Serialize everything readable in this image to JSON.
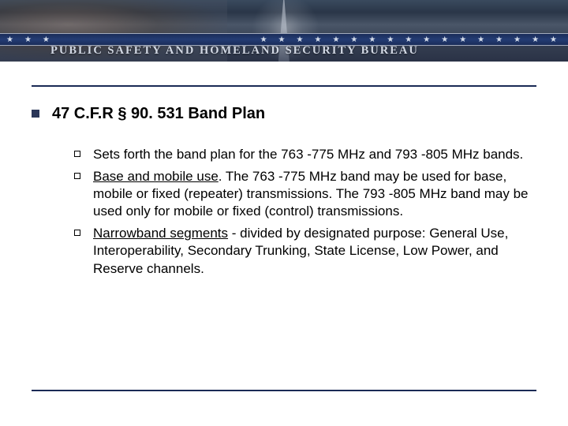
{
  "header": {
    "title": "PUBLIC SAFETY AND HOMELAND SECURITY BUREAU",
    "star_glyph": "★",
    "title_color": "#d2d8e4",
    "bar_color": "#1f356a"
  },
  "rule_color": "#1a2a55",
  "content": {
    "heading": "47 C.F.R § 90. 531 Band Plan",
    "items": [
      {
        "prefix": "",
        "underlined": "",
        "body": "Sets forth the band plan for the 763 -775 MHz and 793 -805 MHz bands."
      },
      {
        "prefix": "",
        "underlined": "Base and mobile use",
        "body": ".  The 763 -775 MHz band may be used for base, mobile or fixed (repeater) transmissions.  The 793 -805 MHz band may be used only for mobile or fixed (control) transmissions."
      },
      {
        "prefix": "",
        "underlined": "Narrowband segments",
        "body": " - divided by designated purpose:  General Use, Interoperability, Secondary Trunking, State License, Low Power, and Reserve channels."
      }
    ]
  },
  "colors": {
    "text": "#000000",
    "bullet_filled": "#2a3658",
    "background": "#ffffff"
  },
  "typography": {
    "heading_fontsize": 20,
    "body_fontsize": 17,
    "header_title_fontsize": 14.5
  }
}
